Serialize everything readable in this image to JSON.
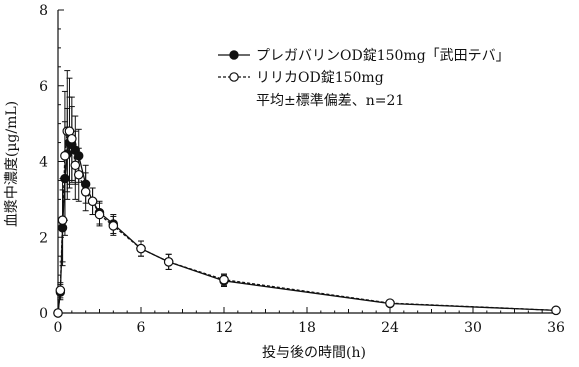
{
  "chart_data": {
    "type": "line",
    "title": "",
    "xlabel": "投与後の時間(h)",
    "ylabel": "血漿中濃度(µg/mL)",
    "xlim": [
      0,
      36
    ],
    "ylim": [
      0,
      8
    ],
    "xticks": [
      0,
      6,
      12,
      18,
      24,
      30,
      36
    ],
    "yticks": [
      0,
      2,
      4,
      6,
      8
    ],
    "grid": false,
    "legend_position": "top-right",
    "statistic_note": "平均±標準偏差、n=21",
    "series": [
      {
        "name": "プレガバリンOD錠150mg「武田テバ」",
        "marker": "filled-circle",
        "line_style": "solid",
        "color": "#111111",
        "points": [
          {
            "x": 0,
            "y": 0.0,
            "err": 0.0
          },
          {
            "x": 0.17,
            "y": 0.55,
            "err": 0.2
          },
          {
            "x": 0.33,
            "y": 2.25,
            "err": 1.0
          },
          {
            "x": 0.5,
            "y": 3.55,
            "err": 1.5
          },
          {
            "x": 0.67,
            "y": 4.2,
            "err": 1.2
          },
          {
            "x": 0.83,
            "y": 4.5,
            "err": 1.2
          },
          {
            "x": 1.0,
            "y": 4.45,
            "err": 1.0
          },
          {
            "x": 1.25,
            "y": 4.3,
            "err": 0.9
          },
          {
            "x": 1.5,
            "y": 4.15,
            "err": 0.7
          },
          {
            "x": 2.0,
            "y": 3.4,
            "err": 0.5
          },
          {
            "x": 2.5,
            "y": 2.95,
            "err": 0.35
          },
          {
            "x": 3.0,
            "y": 2.65,
            "err": 0.3
          },
          {
            "x": 4.0,
            "y": 2.35,
            "err": 0.25
          },
          {
            "x": 6.0,
            "y": 1.7,
            "err": 0.2
          },
          {
            "x": 8.0,
            "y": 1.35,
            "err": 0.2
          },
          {
            "x": 12.0,
            "y": 0.85,
            "err": 0.15
          },
          {
            "x": 24.0,
            "y": 0.25,
            "err": 0.08
          },
          {
            "x": 36.0,
            "y": 0.07,
            "err": 0.03
          }
        ]
      },
      {
        "name": "リリカOD錠150mg",
        "marker": "open-circle",
        "line_style": "dashed",
        "color": "#111111",
        "points": [
          {
            "x": 0,
            "y": 0.0,
            "err": 0.0
          },
          {
            "x": 0.17,
            "y": 0.6,
            "err": 0.2
          },
          {
            "x": 0.33,
            "y": 2.45,
            "err": 1.1
          },
          {
            "x": 0.5,
            "y": 4.15,
            "err": 1.7
          },
          {
            "x": 0.67,
            "y": 4.8,
            "err": 1.6
          },
          {
            "x": 0.83,
            "y": 4.8,
            "err": 1.4
          },
          {
            "x": 1.0,
            "y": 4.6,
            "err": 1.1
          },
          {
            "x": 1.25,
            "y": 3.9,
            "err": 0.9
          },
          {
            "x": 1.5,
            "y": 3.65,
            "err": 0.7
          },
          {
            "x": 2.0,
            "y": 3.2,
            "err": 0.5
          },
          {
            "x": 2.5,
            "y": 2.95,
            "err": 0.35
          },
          {
            "x": 3.0,
            "y": 2.6,
            "err": 0.3
          },
          {
            "x": 4.0,
            "y": 2.3,
            "err": 0.25
          },
          {
            "x": 6.0,
            "y": 1.7,
            "err": 0.2
          },
          {
            "x": 8.0,
            "y": 1.35,
            "err": 0.2
          },
          {
            "x": 12.0,
            "y": 0.88,
            "err": 0.15
          },
          {
            "x": 24.0,
            "y": 0.26,
            "err": 0.08
          },
          {
            "x": 36.0,
            "y": 0.07,
            "err": 0.03
          }
        ]
      }
    ]
  }
}
